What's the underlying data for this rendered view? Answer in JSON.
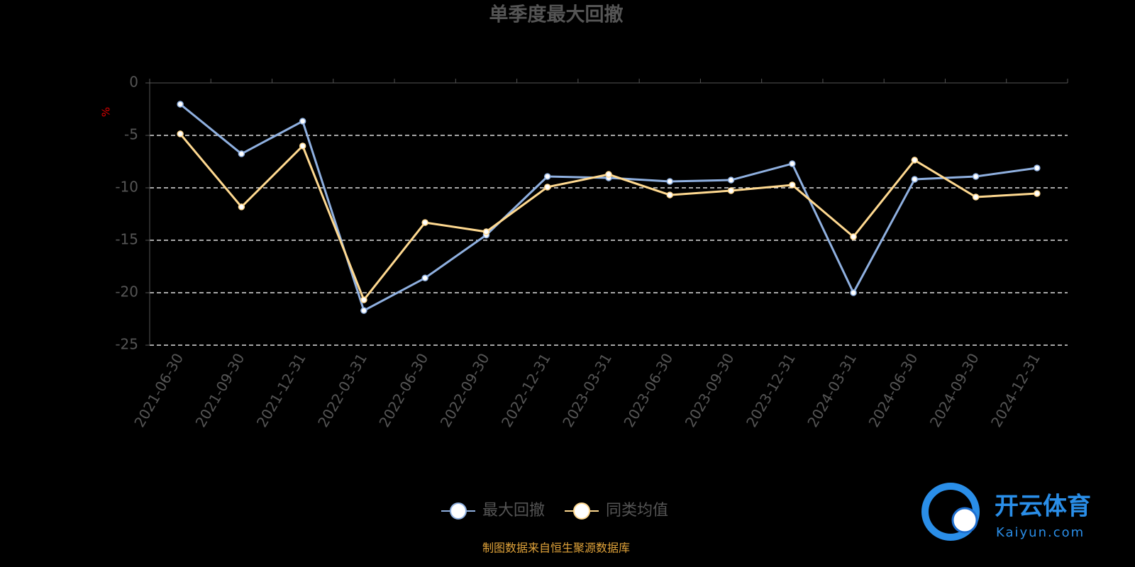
{
  "chart_data": {
    "type": "line",
    "title": "单季度最大回撤",
    "y_label": "%",
    "categories": [
      "2021-06-30",
      "2021-09-30",
      "2021-12-31",
      "2022-03-31",
      "2022-06-30",
      "2022-09-30",
      "2022-12-31",
      "2023-03-31",
      "2023-06-30",
      "2023-09-30",
      "2023-12-31",
      "2024-03-31",
      "2024-06-30",
      "2024-09-30",
      "2024-12-31"
    ],
    "series": [
      {
        "name": "最大回撤",
        "color": "#8fb0e0",
        "values": [
          -2.03,
          -6.76,
          -3.65,
          -21.7,
          -18.6,
          -14.5,
          -8.92,
          -9.05,
          -9.39,
          -9.26,
          -7.7,
          -20.0,
          -9.19,
          -8.92,
          -8.11
        ]
      },
      {
        "name": "同类均值",
        "color": "#ffd990",
        "values": [
          -4.86,
          -11.82,
          -6.01,
          -20.68,
          -13.31,
          -14.19,
          -9.93,
          -8.72,
          -10.68,
          -10.27,
          -9.73,
          -14.66,
          -7.36,
          -10.88,
          -10.54
        ]
      }
    ],
    "ylim": [
      0,
      -25
    ],
    "yticks": [
      0,
      -5,
      -10,
      -15,
      -20,
      -25
    ],
    "grid": true,
    "source": "制图数据来自恒生聚源数据库"
  },
  "watermark": {
    "name": "开云体育",
    "url": "Kaiyun.com"
  }
}
